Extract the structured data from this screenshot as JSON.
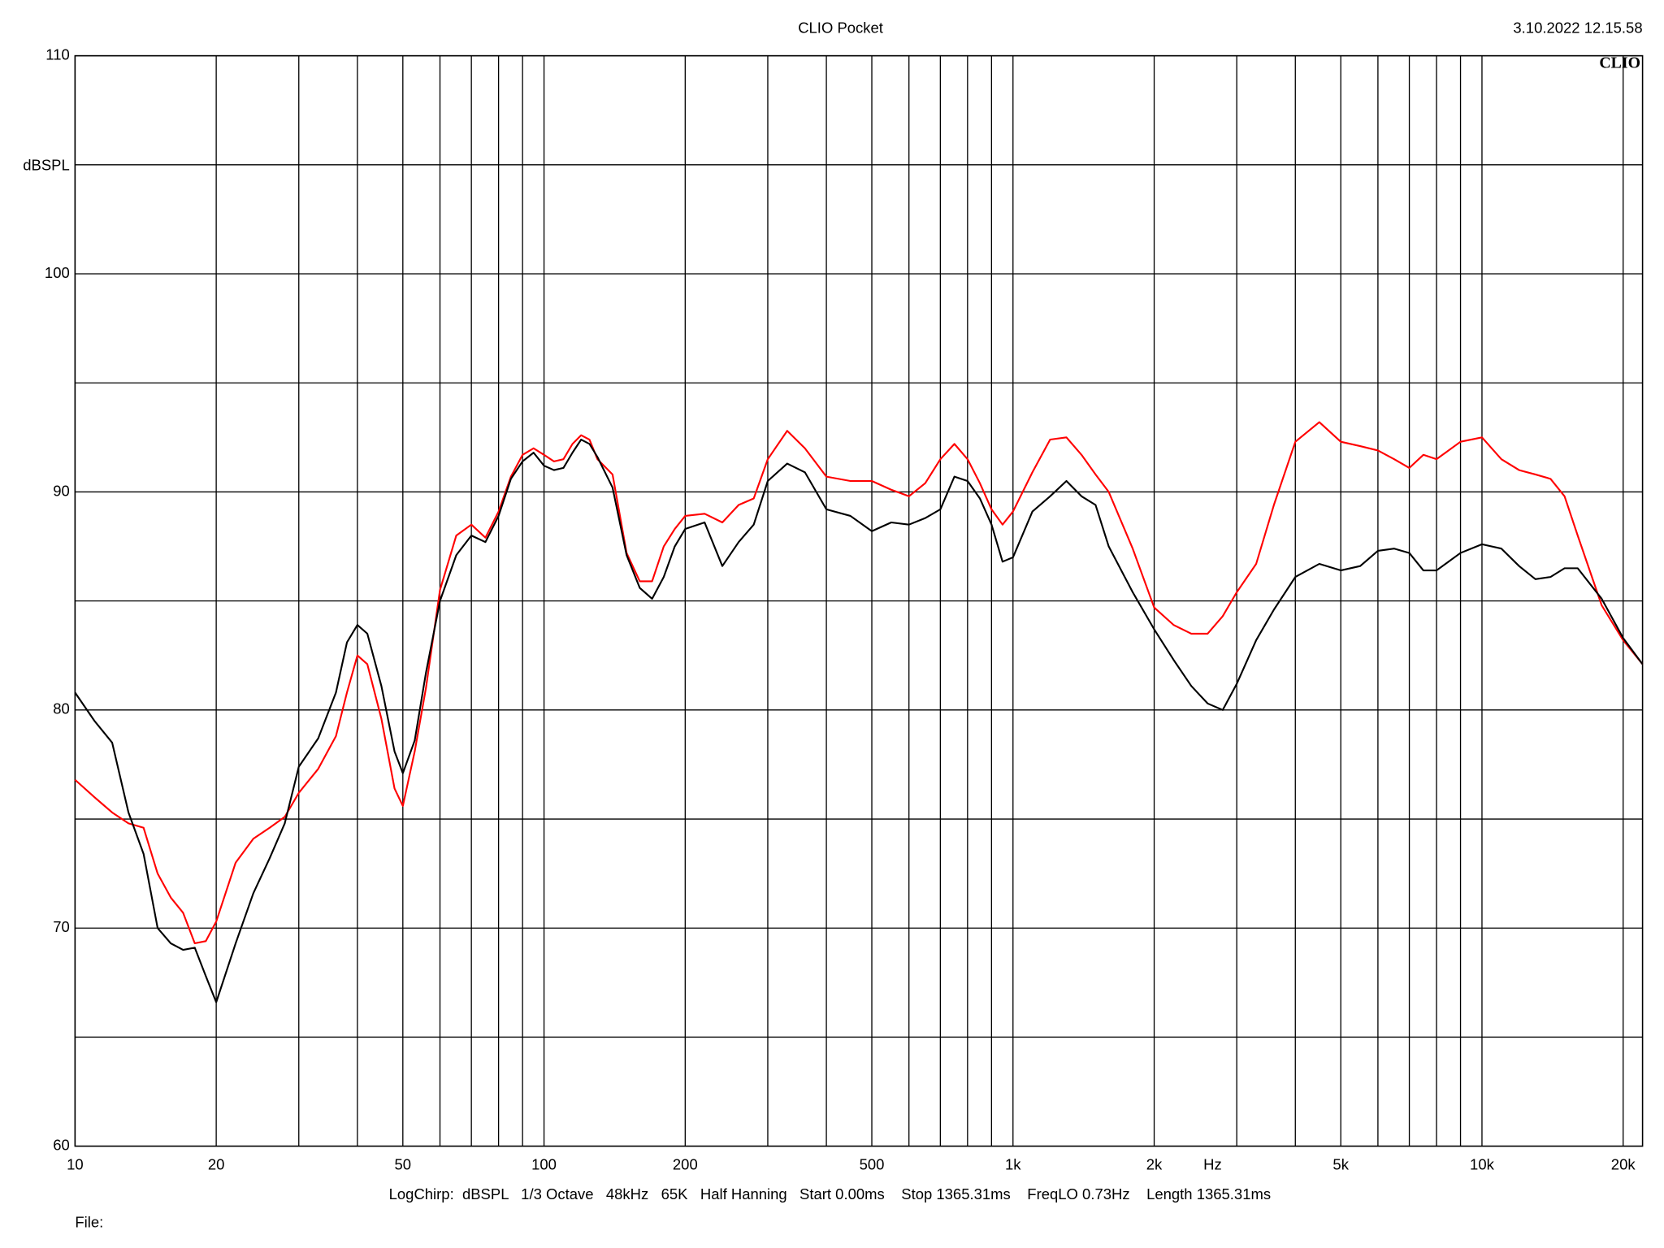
{
  "chart_data": {
    "type": "line",
    "title": "CLIO Pocket",
    "timestamp": "3.10.2022 12.15.58",
    "logo": "CLIO",
    "ylabel": "dBSPL",
    "xunit": "Hz",
    "footer": "LogChirp:  dBSPL   1/3 Octave   48kHz   65K   Half Hanning   Start 0.00ms    Stop 1365.31ms    FreqLO 0.73Hz    Length 1365.31ms",
    "file_label": "File:",
    "log_x": true,
    "grid": true,
    "xlim": [
      10,
      22000
    ],
    "ylim": [
      60,
      110
    ],
    "xticks": [
      10,
      20,
      50,
      100,
      200,
      500,
      {
        "value": 1000,
        "label": "1k"
      },
      {
        "value": 2000,
        "label": "2k"
      },
      {
        "value": 5000,
        "label": "5k"
      },
      {
        "value": 10000,
        "label": "10k"
      },
      {
        "value": 20000,
        "label": "20k"
      }
    ],
    "xminor": [
      30,
      40,
      60,
      70,
      80,
      90,
      300,
      400,
      600,
      700,
      800,
      900,
      3000,
      4000,
      6000,
      7000,
      8000,
      9000
    ],
    "yticks": [
      60,
      70,
      80,
      90,
      100,
      110
    ],
    "yminor": [
      65,
      75,
      85,
      95,
      105
    ],
    "x": [
      10,
      11,
      12,
      13,
      14,
      15,
      16,
      17,
      18,
      19,
      20,
      22,
      24,
      26,
      28,
      30,
      33,
      36,
      38,
      40,
      42,
      45,
      48,
      50,
      53,
      56,
      60,
      65,
      70,
      75,
      80,
      85,
      90,
      95,
      100,
      105,
      110,
      115,
      120,
      125,
      130,
      140,
      150,
      160,
      170,
      180,
      190,
      200,
      220,
      240,
      260,
      280,
      300,
      330,
      360,
      400,
      450,
      500,
      550,
      600,
      650,
      700,
      750,
      800,
      850,
      900,
      950,
      1000,
      1100,
      1200,
      1300,
      1400,
      1500,
      1600,
      1800,
      2000,
      2200,
      2400,
      2600,
      2800,
      3000,
      3300,
      3600,
      4000,
      4500,
      5000,
      5500,
      6000,
      6500,
      7000,
      7500,
      8000,
      9000,
      10000,
      11000,
      12000,
      13000,
      14000,
      15000,
      16000,
      18000,
      20000,
      22000
    ],
    "series": [
      {
        "color": "#ff0000",
        "values": [
          76.8,
          76.0,
          75.3,
          74.8,
          74.6,
          72.5,
          71.4,
          70.7,
          69.3,
          69.4,
          70.3,
          73.0,
          74.1,
          74.6,
          75.1,
          76.2,
          77.3,
          78.8,
          80.8,
          82.5,
          82.1,
          79.6,
          76.4,
          75.6,
          78.1,
          81.0,
          85.5,
          88.0,
          88.5,
          87.9,
          89.1,
          90.7,
          91.7,
          92.0,
          91.7,
          91.4,
          91.5,
          92.2,
          92.6,
          92.4,
          91.5,
          90.8,
          87.2,
          85.9,
          85.9,
          87.5,
          88.3,
          88.9,
          89.0,
          88.6,
          89.4,
          89.7,
          91.5,
          92.8,
          92.0,
          90.7,
          90.5,
          90.5,
          90.1,
          89.8,
          90.4,
          91.5,
          92.2,
          91.5,
          90.4,
          89.2,
          88.5,
          89.1,
          90.9,
          92.4,
          92.5,
          91.7,
          90.8,
          90.0,
          87.4,
          84.7,
          83.9,
          83.5,
          83.5,
          84.3,
          85.4,
          86.7,
          89.4,
          92.3,
          93.2,
          92.3,
          92.1,
          91.9,
          91.5,
          91.1,
          91.7,
          91.5,
          92.3,
          92.5,
          91.5,
          91.0,
          90.8,
          90.6,
          89.8,
          88.0,
          84.8,
          83.2,
          82.1
        ]
      },
      {
        "color": "#000000",
        "values": [
          80.8,
          79.5,
          78.5,
          75.3,
          73.4,
          70.0,
          69.3,
          69.0,
          69.1,
          67.8,
          66.6,
          69.3,
          71.6,
          73.2,
          74.8,
          77.4,
          78.7,
          80.8,
          83.1,
          83.9,
          83.5,
          81.1,
          78.1,
          77.1,
          78.6,
          81.7,
          85.0,
          87.1,
          88.0,
          87.7,
          88.9,
          90.6,
          91.4,
          91.8,
          91.2,
          91.0,
          91.1,
          91.8,
          92.4,
          92.2,
          91.6,
          90.2,
          87.1,
          85.6,
          85.1,
          86.1,
          87.5,
          88.3,
          88.6,
          86.6,
          87.7,
          88.5,
          90.5,
          91.3,
          90.9,
          89.2,
          88.9,
          88.2,
          88.6,
          88.5,
          88.8,
          89.2,
          90.7,
          90.5,
          89.7,
          88.5,
          86.8,
          87.0,
          89.1,
          89.8,
          90.5,
          89.8,
          89.4,
          87.5,
          85.4,
          83.7,
          82.3,
          81.1,
          80.3,
          80.0,
          81.2,
          83.2,
          84.6,
          86.1,
          86.7,
          86.4,
          86.6,
          87.3,
          87.4,
          87.2,
          86.4,
          86.4,
          87.2,
          87.6,
          87.4,
          86.6,
          86.0,
          86.1,
          86.5,
          86.5,
          85.1,
          83.3,
          82.1
        ]
      }
    ]
  }
}
